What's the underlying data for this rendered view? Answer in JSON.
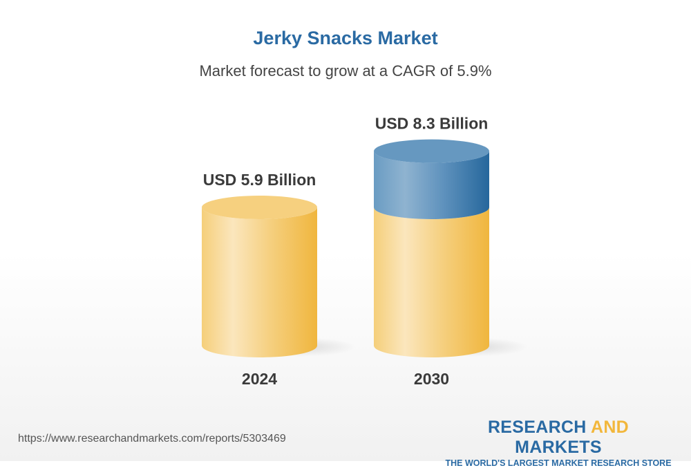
{
  "title": "Jerky Snacks Market",
  "subtitle": "Market forecast to grow at a CAGR of 5.9%",
  "chart_data": {
    "type": "bar",
    "style": "3d-cylinder",
    "categories": [
      "2024",
      "2030"
    ],
    "values": [
      5.9,
      8.3
    ],
    "data_labels": [
      "USD 5.9 Billion",
      "USD 8.3 Billion"
    ],
    "unit": "USD Billion",
    "cagr": "5.9%",
    "colors": {
      "base": "#f2b73c",
      "growth": "#2a6aa3"
    }
  },
  "footer": {
    "url": "https://www.researchandmarkets.com/reports/5303469",
    "logo_word1": "RESEARCH ",
    "logo_word2": "AND",
    "logo_word3": " MARKETS",
    "tagline": "THE WORLD'S LARGEST MARKET RESEARCH STORE"
  }
}
